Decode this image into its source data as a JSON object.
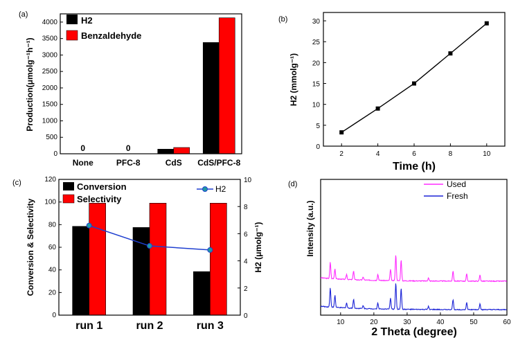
{
  "chart_data": [
    {
      "panel": "(a)",
      "type": "bar",
      "categories": [
        "None",
        "PFC-8",
        "CdS",
        "CdS/PFC-8"
      ],
      "series": [
        {
          "name": "H2",
          "values": [
            0,
            0,
            140,
            3380
          ],
          "color": "#000000"
        },
        {
          "name": "Benzaldehyde",
          "values": [
            0,
            0,
            190,
            4130
          ],
          "color": "#ff0000"
        }
      ],
      "data_labels": [
        "0",
        "0"
      ],
      "ylabel": "Production(μmolg⁻¹h⁻¹)",
      "ylim": [
        0,
        4250
      ],
      "yticks": [
        "0",
        "500",
        "1000",
        "1500",
        "2000",
        "2500",
        "3000",
        "3500",
        "4000"
      ],
      "legend_position": "top-left"
    },
    {
      "panel": "(b)",
      "type": "line",
      "x": [
        2,
        4,
        6,
        8,
        10
      ],
      "y": [
        3.3,
        9.0,
        15.0,
        22.2,
        29.4
      ],
      "xlabel": "Time (h)",
      "ylabel": "H2 (mmolg⁻¹)",
      "xlim": [
        1,
        11
      ],
      "ylim": [
        0,
        32
      ],
      "xticks": [
        "2",
        "4",
        "6",
        "8",
        "10"
      ],
      "yticks": [
        "0",
        "5",
        "10",
        "15",
        "20",
        "25",
        "30"
      ]
    },
    {
      "panel": "(c)",
      "type": "bar",
      "categories": [
        "run 1",
        "run 2",
        "run 3"
      ],
      "series": [
        {
          "name": "Conversion",
          "values": [
            78.5,
            77.5,
            38.5
          ],
          "color": "#000000"
        },
        {
          "name": "Selectivity",
          "values": [
            99,
            99,
            99
          ],
          "color": "#ff0000"
        }
      ],
      "line_series": {
        "name": "H2",
        "values": [
          6.6,
          5.1,
          4.8
        ],
        "axis": "right",
        "color": "#1f3fd0"
      },
      "ylabel": "Conversion & Selectivity",
      "ylabel_right": "H2 (μmolg⁻¹)",
      "ylim": [
        0,
        120
      ],
      "ylim_right": [
        0,
        10
      ],
      "yticks": [
        "0",
        "20",
        "40",
        "60",
        "80",
        "100",
        "120"
      ],
      "yticks_right": [
        "0",
        "2",
        "4",
        "6",
        "8",
        "10"
      ]
    },
    {
      "panel": "(d)",
      "type": "line",
      "series": [
        {
          "name": "Used",
          "color": "#ff2bff",
          "baseline": 0.25
        },
        {
          "name": "Fresh",
          "color": "#1a22d6",
          "baseline": 0.04
        }
      ],
      "peaks": [
        {
          "x": 6.9,
          "h": 0.16
        },
        {
          "x": 8.3,
          "h": 0.1
        },
        {
          "x": 11.8,
          "h": 0.05
        },
        {
          "x": 13.9,
          "h": 0.09
        },
        {
          "x": 16.8,
          "h": 0.03
        },
        {
          "x": 21.2,
          "h": 0.06
        },
        {
          "x": 25.0,
          "h": 0.11
        },
        {
          "x": 26.6,
          "h": 0.26
        },
        {
          "x": 28.2,
          "h": 0.21
        },
        {
          "x": 36.4,
          "h": 0.03
        },
        {
          "x": 43.8,
          "h": 0.1
        },
        {
          "x": 47.9,
          "h": 0.07
        },
        {
          "x": 51.9,
          "h": 0.06
        }
      ],
      "xlabel": "2 Theta (degree)",
      "ylabel": "Intensity (a.u.)",
      "xlim": [
        4,
        60
      ],
      "xticks": [
        "10",
        "20",
        "30",
        "40",
        "50",
        "60"
      ]
    }
  ]
}
